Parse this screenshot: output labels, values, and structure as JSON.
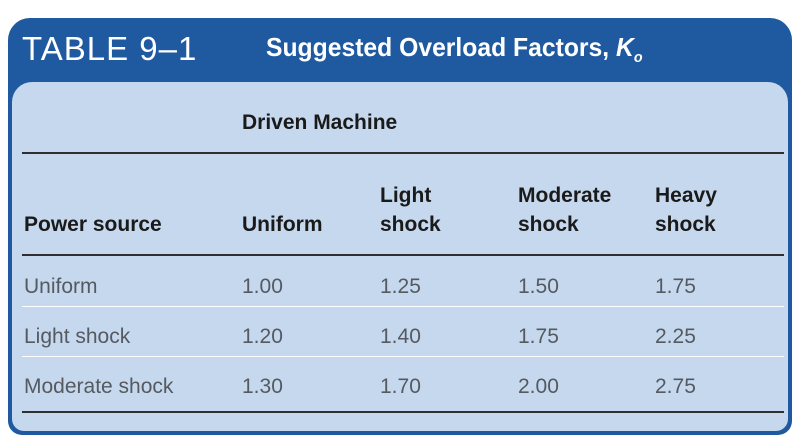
{
  "header": {
    "table_number": "TABLE 9–1",
    "title": "Suggested Overload Factors, ",
    "symbol": "K",
    "symbol_sub": "o"
  },
  "group_header": "Driven Machine",
  "columns": {
    "power_source": "Power source",
    "uniform": "Uniform",
    "light_l1": "Light",
    "light_l2": "shock",
    "moderate_l1": "Moderate",
    "moderate_l2": "shock",
    "heavy_l1": "Heavy",
    "heavy_l2": "shock"
  },
  "rows": [
    {
      "source": "Uniform",
      "values": [
        "1.00",
        "1.25",
        "1.50",
        "1.75"
      ]
    },
    {
      "source": "Light shock",
      "values": [
        "1.20",
        "1.40",
        "1.75",
        "2.25"
      ]
    },
    {
      "source": "Moderate shock",
      "values": [
        "1.30",
        "1.70",
        "2.00",
        "2.75"
      ]
    }
  ],
  "colors": {
    "header_band": "#1f5aa0",
    "body_background": "#c6d8ee",
    "header_text": "#ffffff",
    "cell_text": "#555a61"
  }
}
